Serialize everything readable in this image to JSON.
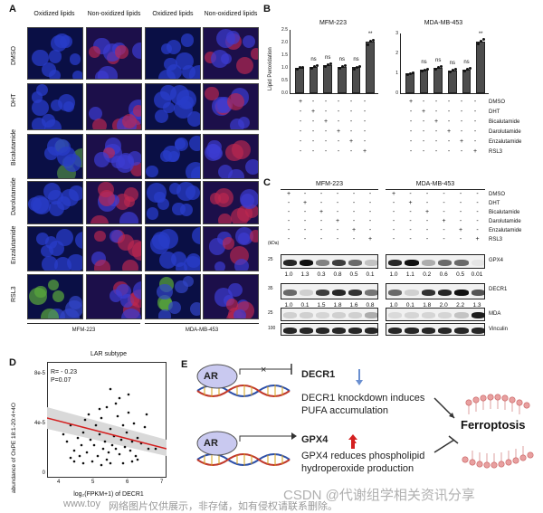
{
  "panels": {
    "A": {
      "label": "A"
    },
    "B": {
      "label": "B"
    },
    "C": {
      "label": "C"
    },
    "D": {
      "label": "D"
    },
    "E": {
      "label": "E"
    }
  },
  "panel_a": {
    "col_headers": [
      "Oxidized lipids",
      "Non-oxidized lipids",
      "Oxidized lipids",
      "Non-oxidized lipids"
    ],
    "rows": [
      "DMSO",
      "DHT",
      "Bicalutamide",
      "Darolutamide",
      "Enzalutamide",
      "RSL3"
    ],
    "cell_lines": [
      "MFM-223",
      "MDA-MB-453"
    ]
  },
  "panel_b": {
    "ylabel": "Lipid Peroxidation",
    "charts": [
      {
        "title": "MFM-223",
        "yticks": [
          "0.0",
          "0.5",
          "1.0",
          "1.5",
          "2.0",
          "2.5"
        ],
        "values": [
          1.0,
          1.05,
          1.12,
          1.05,
          1.02,
          2.02
        ],
        "sig": [
          "",
          "ns",
          "ns",
          "ns",
          "ns",
          "**"
        ]
      },
      {
        "title": "MDA-MB-453",
        "yticks": [
          "0",
          "1",
          "2",
          "3"
        ],
        "values": [
          1.0,
          1.18,
          1.28,
          1.15,
          1.2,
          2.6
        ],
        "sig": [
          "",
          "ns",
          "ns",
          "ns",
          "ns",
          "**"
        ]
      }
    ],
    "treatments": [
      "DMSO",
      "DHT",
      "Bicalutamide",
      "Darolutamide",
      "Enzalutamide",
      "RSL3"
    ]
  },
  "panel_c": {
    "cell_lines": [
      "MFM-223",
      "MDA-MB-453"
    ],
    "treatments": [
      "DMSO",
      "DHT",
      "Bicalutamide",
      "Darolutamide",
      "Enzalutamide",
      "RSL3"
    ],
    "kda_label": "(kDa)",
    "blots": [
      {
        "name": "GPX4",
        "kda": "25",
        "values": [
          "1.0",
          "1.3",
          "0.3",
          "0.8",
          "0.5",
          "0.1",
          "1.0",
          "1.1",
          "0.2",
          "0.6",
          "0.5",
          "0.01"
        ]
      },
      {
        "name": "DECR1",
        "kda": "35",
        "values": [
          "1.0",
          "0.1",
          "1.5",
          "1.8",
          "1.6",
          "0.8",
          "1.0",
          "0.1",
          "1.8",
          "2.0",
          "2.2",
          "1.3"
        ]
      },
      {
        "name": "MDA",
        "kda": "25",
        "values": []
      },
      {
        "name": "Vinculin",
        "kda": "100",
        "values": []
      }
    ]
  },
  "panel_d": {
    "title": "LAR subtype",
    "stats": "R= - 0.23",
    "pval": "P=0.07",
    "ylabel": "abundance of OxPE 18:1-20:4+4O",
    "xlabel": "log₂(FPKM+1) of DECR1",
    "yticks": [
      "8e-5",
      "4e-5",
      "0"
    ],
    "xticks": [
      "4",
      "5",
      "6",
      "7"
    ]
  },
  "panel_e": {
    "ar_label": "AR",
    "decr1": "DECR1",
    "gpx4": "GPX4",
    "decr1_text": [
      "DECR1 knockdown induces",
      "PUFA accumulation"
    ],
    "gpx4_text": [
      "GPX4 reduces phospholipid",
      "hydroperoxide production"
    ],
    "ferroptosis": "Ferroptosis"
  },
  "watermark": {
    "left": "www.toy",
    "mid": "网络图片仅供展示，非存储，如有侵权请联系删除。",
    "right": "CSDN @代谢组学相关资讯分享"
  },
  "colors": {
    "accent_red": "#d42020",
    "bar_gray": "#4d4d4d",
    "blue_cells": "#1a237e"
  }
}
